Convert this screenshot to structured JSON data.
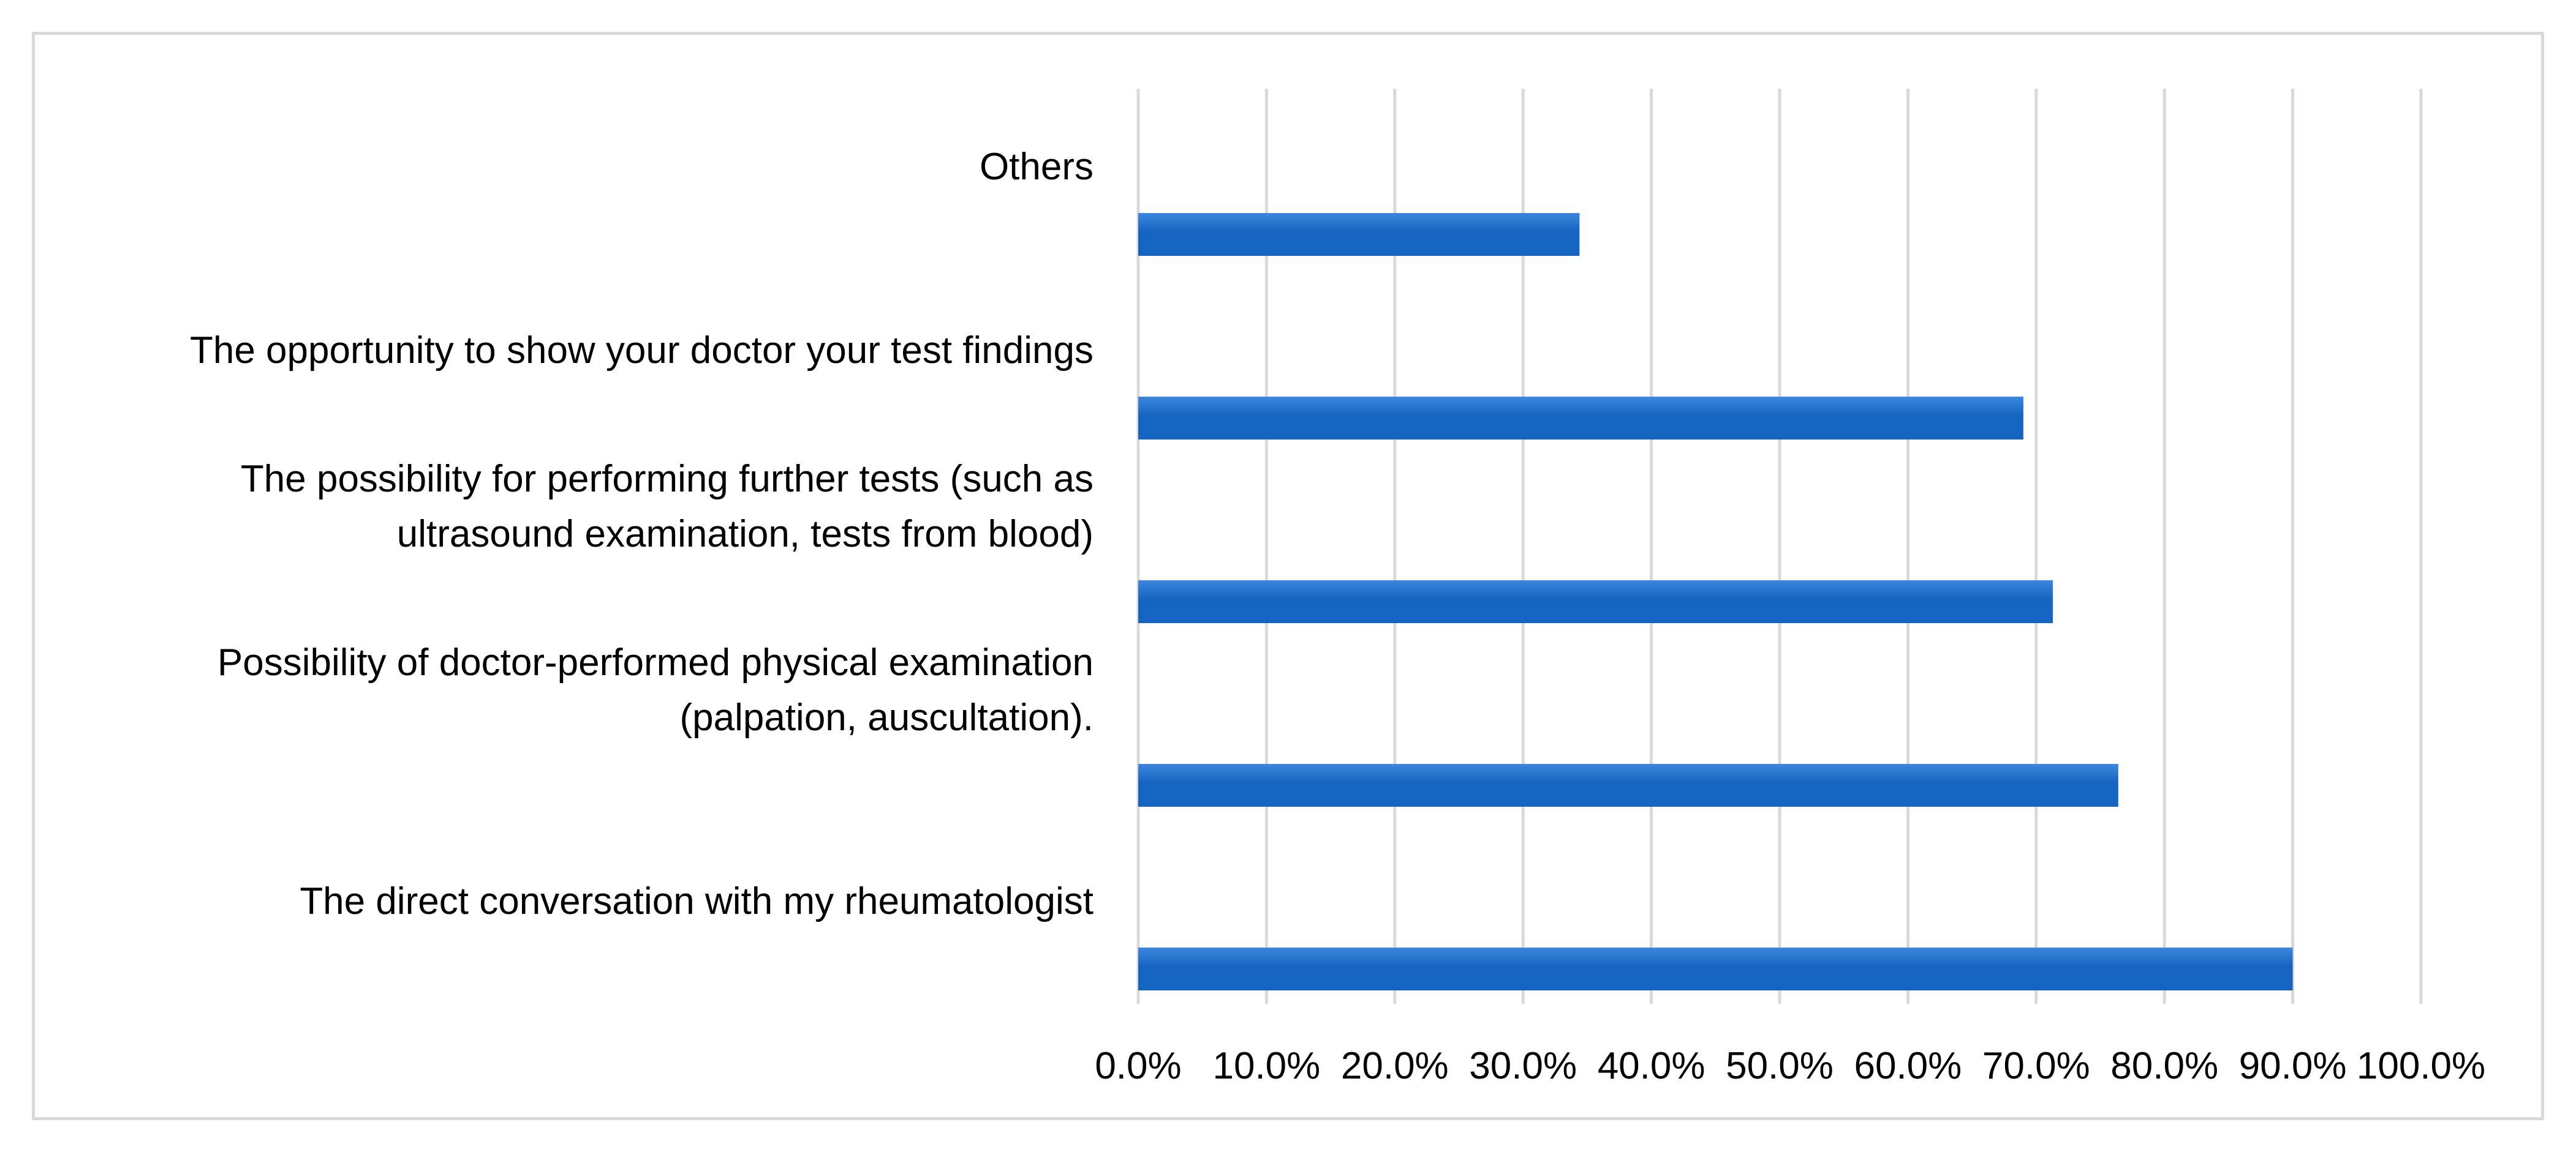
{
  "chart_data": {
    "type": "bar",
    "orientation": "horizontal",
    "title": "",
    "xlabel": "",
    "ylabel": "",
    "xlim": [
      0,
      100
    ],
    "grid": true,
    "categories": [
      {
        "label_lines": [
          "Others"
        ]
      },
      {
        "label_lines": [
          "The opportunity to show your doctor your test findings"
        ]
      },
      {
        "label_lines": [
          "The possibility for performing further tests (such as",
          "ultrasound examination, tests from blood)"
        ]
      },
      {
        "label_lines": [
          "Possibility of doctor-performed physical examination",
          "(palpation, auscultation)."
        ]
      },
      {
        "label_lines": [
          "The direct conversation with my rheumatologist"
        ]
      }
    ],
    "values": [
      34.4,
      69.0,
      71.3,
      76.4,
      90.0
    ],
    "ticks": [
      "0.0%",
      "10.0%",
      "20.0%",
      "30.0%",
      "40.0%",
      "50.0%",
      "60.0%",
      "70.0%",
      "80.0%",
      "90.0%",
      "100.0%"
    ],
    "colors": {
      "bar": "#1565c0",
      "bar_light": "#3d86dc",
      "grid": "#d9d9d9"
    }
  }
}
